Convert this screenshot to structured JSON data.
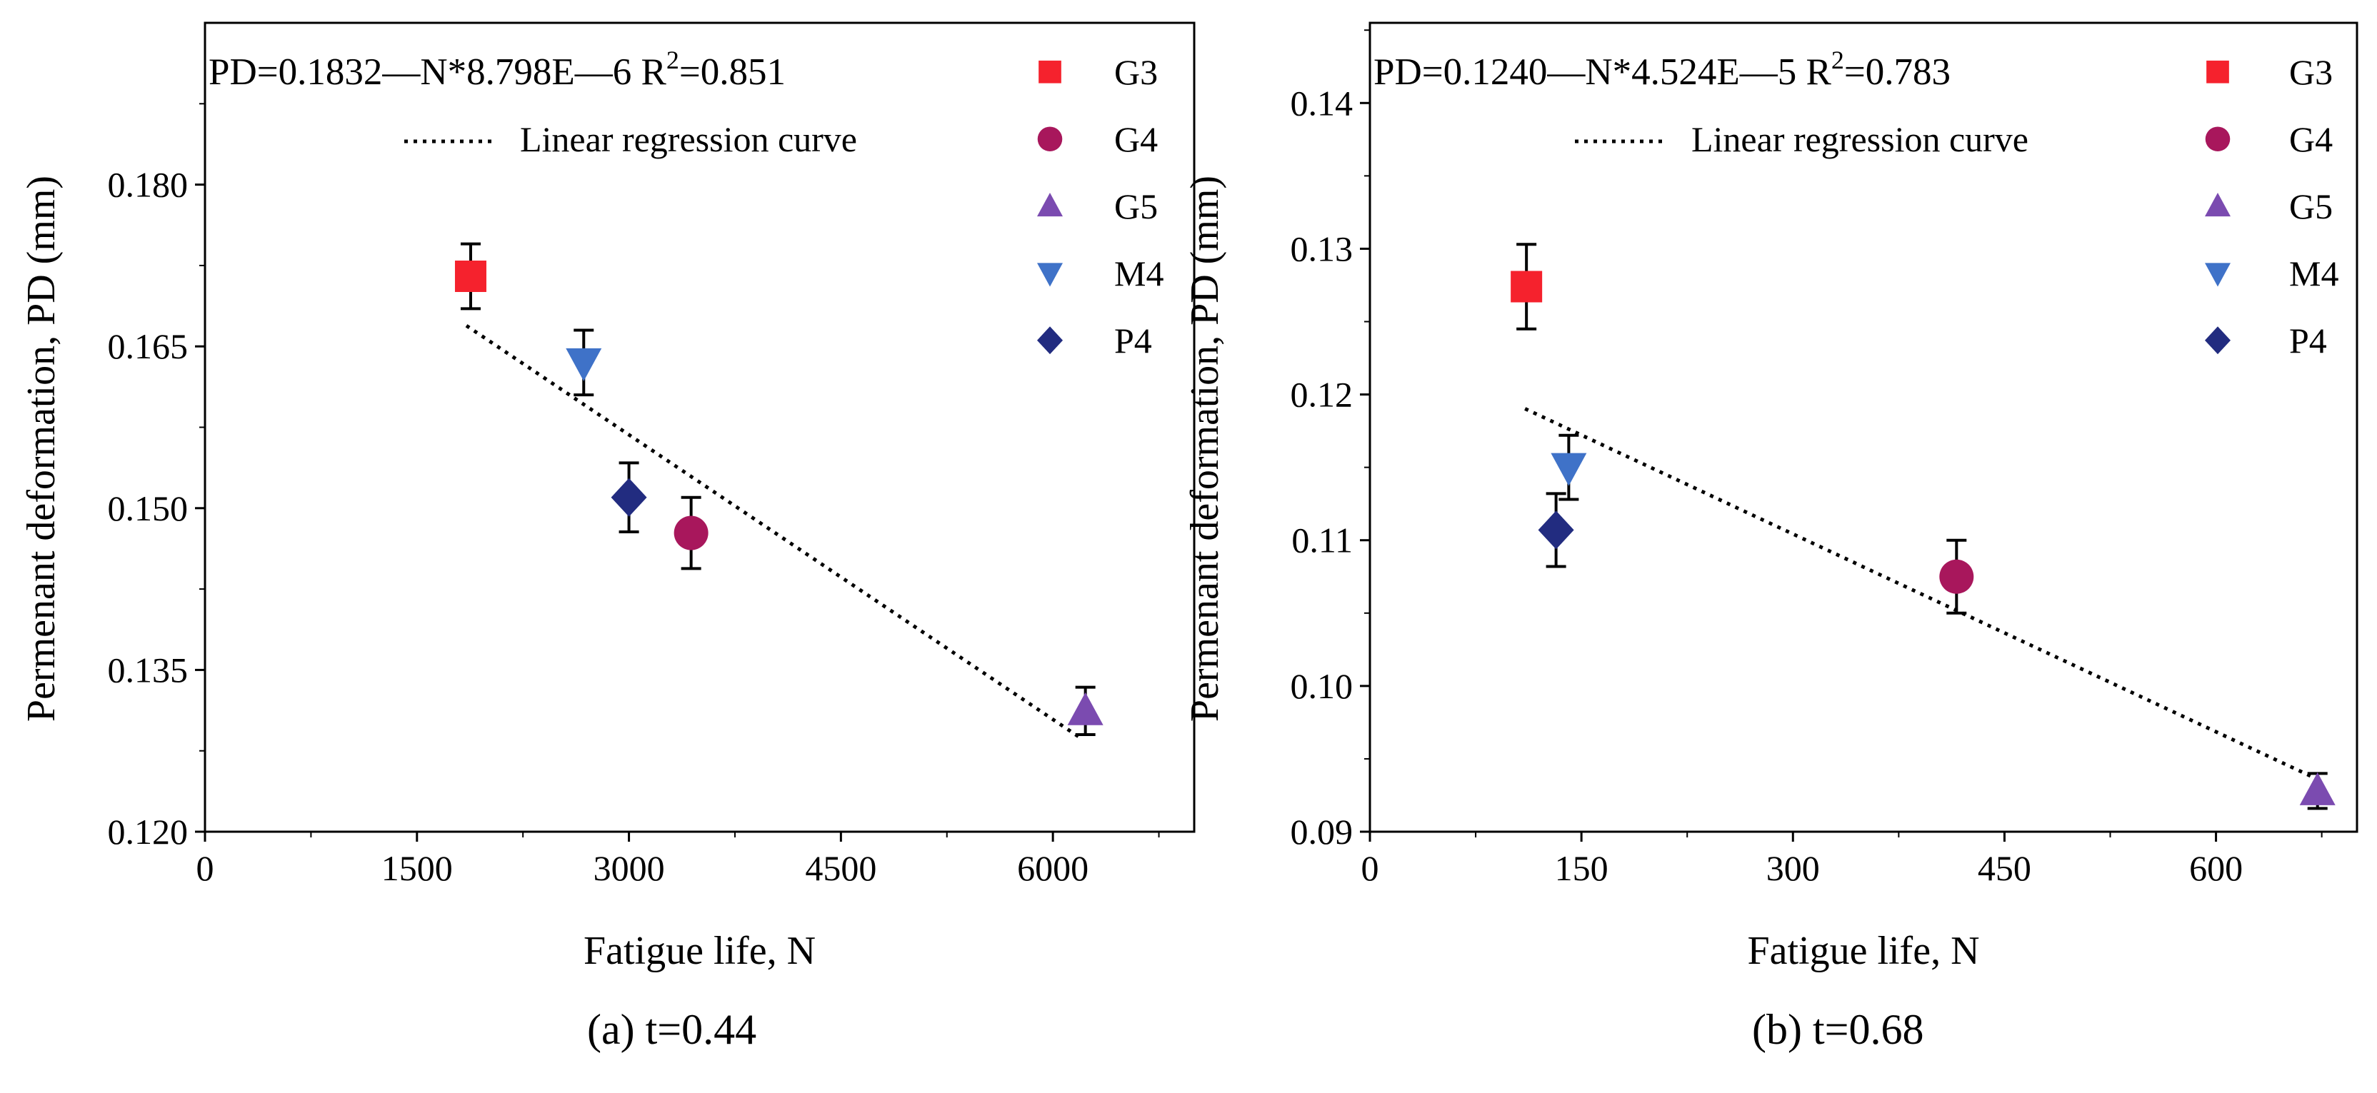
{
  "chart_data": [
    {
      "type": "scatter",
      "caption": "(a) t=0.44",
      "xlabel": "Fatigue life, N",
      "ylabel": "Permenant deformation, PD (mm)",
      "xlim": [
        0,
        7000
      ],
      "ylim": [
        0.12,
        0.195
      ],
      "xticks": [
        0,
        1500,
        3000,
        4500,
        6000
      ],
      "xtick_labels": [
        "0",
        "1500",
        "3000",
        "4500",
        "6000"
      ],
      "yticks": [
        0.12,
        0.135,
        0.15,
        0.165,
        0.18
      ],
      "ytick_labels": [
        "0.120",
        "0.135",
        "0.150",
        "0.165",
        "0.180"
      ],
      "equation": {
        "prefix": "PD=0.1832—N*8.798E—6  R",
        "sup": "2",
        "suffix": "=0.851"
      },
      "regression": {
        "label": "Linear regression curve",
        "intercept": 0.1832,
        "slope": -8.798e-06,
        "x_range": [
          1850,
          6200
        ]
      },
      "series": [
        {
          "name": "G3",
          "marker": "square",
          "color": "#f5222d",
          "x": 1880,
          "y": 0.1715,
          "err": 0.003
        },
        {
          "name": "G4",
          "marker": "circle",
          "color": "#a8175c",
          "x": 3440,
          "y": 0.1477,
          "err": 0.0033
        },
        {
          "name": "G5",
          "marker": "triangle-up",
          "color": "#7b4bb0",
          "x": 6230,
          "y": 0.1312,
          "err": 0.0022
        },
        {
          "name": "M4",
          "marker": "triangle-down",
          "color": "#3f72c8",
          "x": 2680,
          "y": 0.1635,
          "err": 0.003
        },
        {
          "name": "P4",
          "marker": "diamond",
          "color": "#222c80",
          "x": 3000,
          "y": 0.151,
          "err": 0.0032
        }
      ]
    },
    {
      "type": "scatter",
      "caption": "(b) t=0.68",
      "xlabel": "Fatigue life, N",
      "ylabel": "Permenant deformation, PD (mm)",
      "xlim": [
        0,
        700
      ],
      "ylim": [
        0.09,
        0.1455
      ],
      "xticks": [
        0,
        150,
        300,
        450,
        600
      ],
      "xtick_labels": [
        "0",
        "150",
        "300",
        "450",
        "600"
      ],
      "yticks": [
        0.09,
        0.1,
        0.11,
        0.12,
        0.13,
        0.14
      ],
      "ytick_labels": [
        "0.09",
        "0.10",
        "0.11",
        "0.12",
        "0.13",
        "0.14"
      ],
      "equation": {
        "prefix": "PD=0.1240—N*4.524E—5  R",
        "sup": "2",
        "suffix": "=0.783"
      },
      "regression": {
        "label": "Linear regression curve",
        "intercept": 0.124,
        "slope": -4.524e-05,
        "x_range": [
          110,
          675
        ]
      },
      "series": [
        {
          "name": "G3",
          "marker": "square",
          "color": "#f5222d",
          "x": 111,
          "y": 0.1274,
          "err": 0.0029
        },
        {
          "name": "G4",
          "marker": "circle",
          "color": "#a8175c",
          "x": 416,
          "y": 0.1075,
          "err": 0.0025
        },
        {
          "name": "G5",
          "marker": "triangle-up",
          "color": "#7b4bb0",
          "x": 672,
          "y": 0.0928,
          "err": 0.0012
        },
        {
          "name": "M4",
          "marker": "triangle-down",
          "color": "#3f72c8",
          "x": 141,
          "y": 0.115,
          "err": 0.0022
        },
        {
          "name": "P4",
          "marker": "diamond",
          "color": "#222c80",
          "x": 132,
          "y": 0.1107,
          "err": 0.0025
        }
      ]
    }
  ]
}
